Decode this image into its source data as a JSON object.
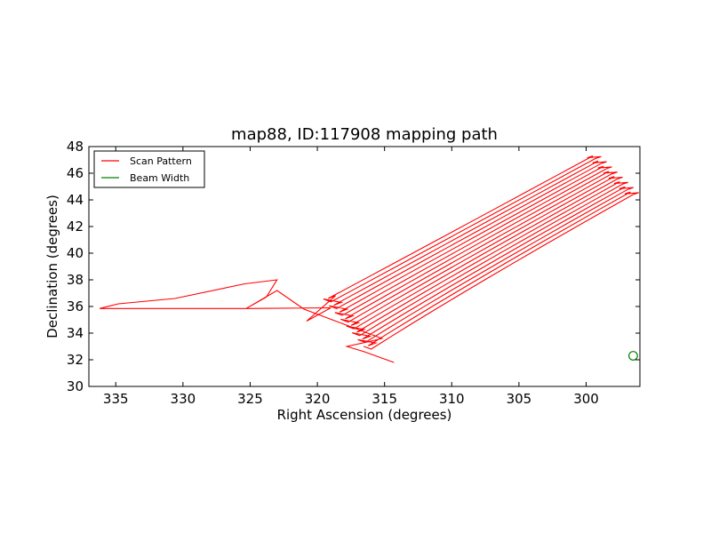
{
  "chart_data": {
    "type": "line",
    "title": "map88, ID:117908 mapping path",
    "xlabel": "Right Ascension (degrees)",
    "ylabel": "Declination (degrees)",
    "xlim": [
      337,
      296
    ],
    "ylim": [
      30,
      48
    ],
    "x_inverted": true,
    "xticks": [
      335,
      330,
      325,
      320,
      315,
      310,
      305,
      300
    ],
    "yticks": [
      30,
      32,
      34,
      36,
      38,
      40,
      42,
      44,
      46,
      48
    ],
    "grid": false,
    "legend_position": "top-left",
    "colors": {
      "scan": "#ff0000",
      "beam": "#008000"
    },
    "series": [
      {
        "name": "Scan Pattern",
        "kind": "path",
        "approach": [
          [
            314.3,
            31.8
          ],
          [
            316.5,
            32.6
          ],
          [
            317.8,
            33.0
          ],
          [
            316.0,
            33.4
          ],
          [
            315.2,
            33.6
          ],
          [
            321.0,
            35.8
          ],
          [
            323.0,
            37.2
          ],
          [
            325.3,
            35.85
          ],
          [
            330.0,
            35.85
          ],
          [
            333.5,
            35.85
          ],
          [
            336.2,
            35.85
          ],
          [
            334.8,
            36.2
          ],
          [
            330.6,
            36.6
          ],
          [
            325.4,
            37.7
          ],
          [
            323.0,
            38.0
          ],
          [
            323.8,
            36.7
          ],
          [
            325.3,
            35.85
          ],
          [
            319.0,
            35.9
          ],
          [
            320.8,
            34.9
          ]
        ],
        "passes": 16,
        "pass_start": [
          [
            319.2,
            36.6
          ],
          [
            316.0,
            32.8
          ]
        ],
        "pass_mid": [
          [
            312.5,
            40.2
          ],
          [
            308.5,
            37.6
          ]
        ],
        "pass_end": [
          [
            299.5,
            47.3
          ],
          [
            296.5,
            44.4
          ]
        ],
        "jitter": 0.7
      },
      {
        "name": "Beam Width",
        "kind": "circle",
        "center": [
          296.5,
          32.3
        ],
        "radius_deg_y": 0.32
      }
    ]
  }
}
